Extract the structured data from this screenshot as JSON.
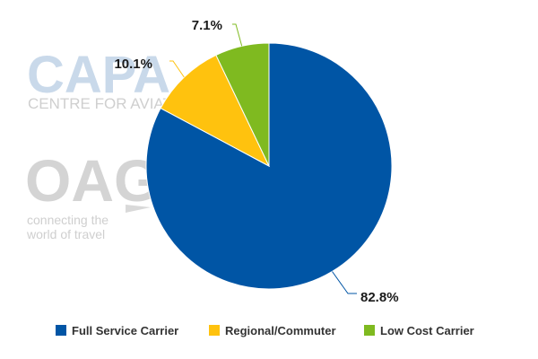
{
  "watermarks": {
    "capa_logo": "CAPA",
    "capa_sub": "CENTRE FOR AVIATION",
    "oag_logo": "OAG",
    "oag_tagline_1": "connecting the",
    "oag_tagline_2": "world of travel"
  },
  "chart_data": {
    "type": "pie",
    "title": "",
    "legend_position": "bottom",
    "slices": [
      {
        "name": "Full Service Carrier",
        "value": 82.8,
        "label": "82.8%",
        "color": "#0055A5"
      },
      {
        "name": "Regional/Commuter",
        "value": 10.1,
        "label": "10.1%",
        "color": "#FFC20E"
      },
      {
        "name": "Low Cost Carrier",
        "value": 7.1,
        "label": "7.1%",
        "color": "#7FBA20"
      }
    ]
  }
}
